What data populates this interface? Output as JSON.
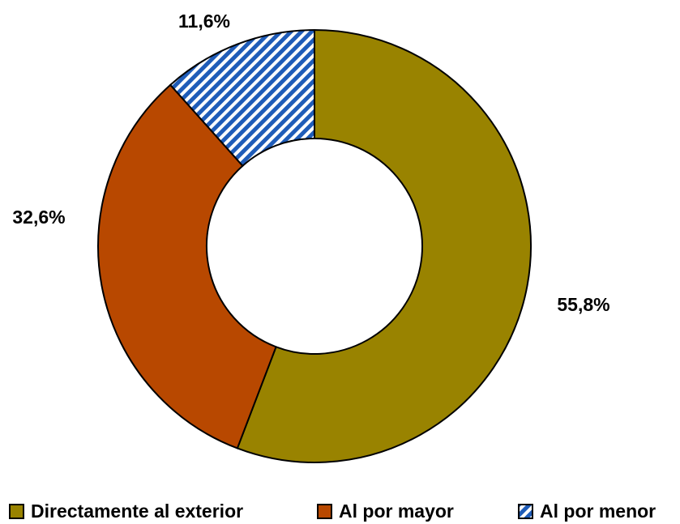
{
  "chart_data": {
    "type": "donut",
    "categories": [
      "Directamente al exterior",
      "Al por mayor",
      "Al por menor"
    ],
    "values": [
      55.8,
      32.6,
      11.6
    ],
    "value_labels": [
      "55,8%",
      "32,6%",
      "11,6%"
    ],
    "colors": [
      "#998300",
      "#b84800",
      "#1f5cb8"
    ],
    "patterns": [
      null,
      null,
      "diagonal"
    ],
    "legend": "bottom"
  }
}
